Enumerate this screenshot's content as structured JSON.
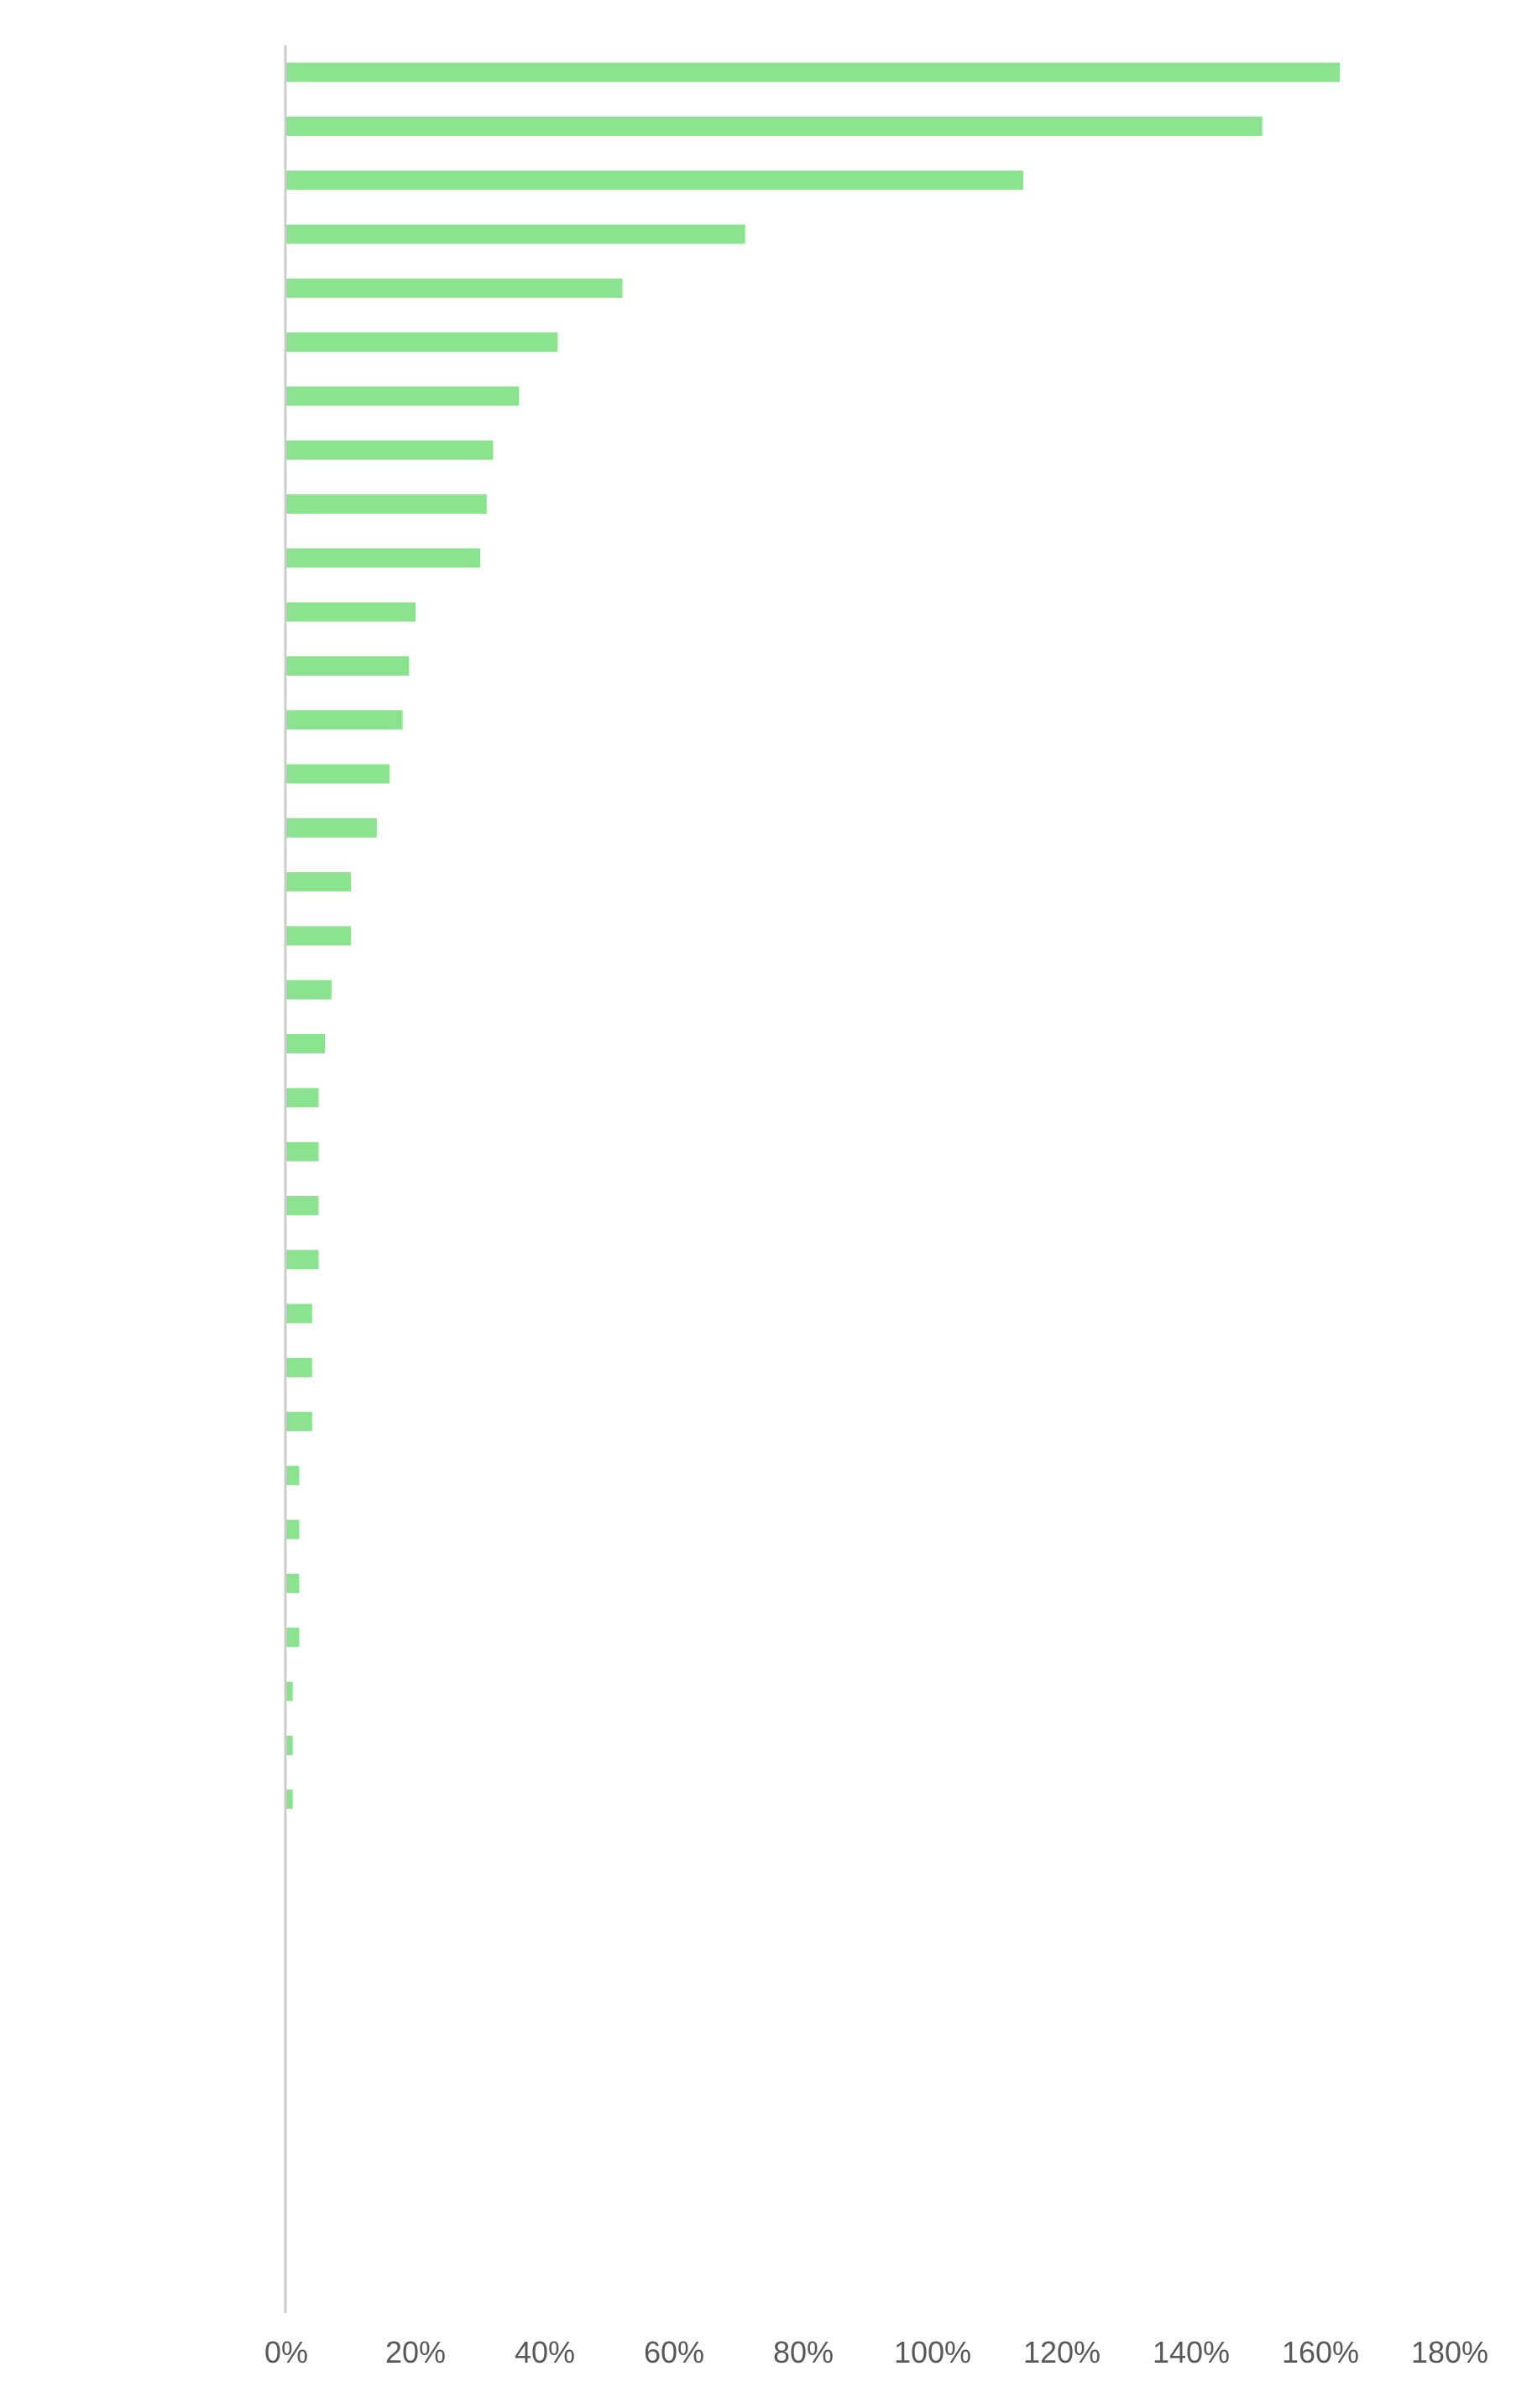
{
  "chart_data": {
    "type": "bar",
    "orientation": "horizontal",
    "title": "",
    "xlabel": "",
    "ylabel": "",
    "xlim": [
      0,
      180
    ],
    "x_ticks": [
      "0%",
      "20%",
      "40%",
      "60%",
      "80%",
      "100%",
      "120%",
      "140%",
      "160%",
      "180%"
    ],
    "grid": false,
    "bar_color": "#8BE28F",
    "axis_color": "#CCCCCC",
    "tick_label_color": "#595959",
    "categories": [
      "",
      "",
      "",
      "",
      "",
      "",
      "",
      "",
      "",
      "",
      "",
      "",
      "",
      "",
      "",
      "",
      "",
      "",
      "",
      "",
      "",
      "",
      "",
      "",
      "",
      "",
      "",
      "",
      "",
      "",
      "",
      "",
      "",
      "",
      "",
      "",
      "",
      "",
      "",
      "",
      "",
      "",
      ""
    ],
    "values": [
      163,
      151,
      114,
      71,
      52,
      42,
      36,
      32,
      31,
      30,
      20,
      19,
      18,
      16,
      14,
      10,
      10,
      7,
      6,
      5,
      5,
      5,
      5,
      4,
      4,
      4,
      2,
      2,
      2,
      2,
      1,
      1,
      1,
      0,
      0,
      0,
      0,
      0,
      0,
      0,
      0,
      0,
      0
    ]
  }
}
